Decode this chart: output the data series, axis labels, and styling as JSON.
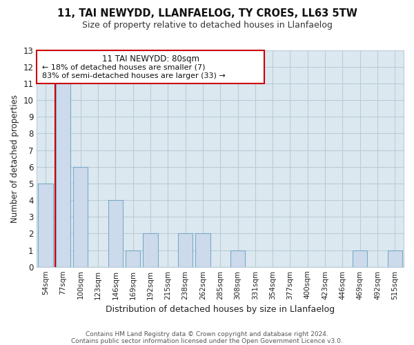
{
  "title": "11, TAI NEWYDD, LLANFAELOG, TY CROES, LL63 5TW",
  "subtitle": "Size of property relative to detached houses in Llanfaelog",
  "xlabel": "Distribution of detached houses by size in Llanfaelog",
  "ylabel": "Number of detached properties",
  "categories": [
    "54sqm",
    "77sqm",
    "100sqm",
    "123sqm",
    "146sqm",
    "169sqm",
    "192sqm",
    "215sqm",
    "238sqm",
    "262sqm",
    "285sqm",
    "308sqm",
    "331sqm",
    "354sqm",
    "377sqm",
    "400sqm",
    "423sqm",
    "446sqm",
    "469sqm",
    "492sqm",
    "515sqm"
  ],
  "values": [
    5,
    11,
    6,
    0,
    4,
    1,
    2,
    0,
    2,
    2,
    0,
    1,
    0,
    0,
    0,
    0,
    0,
    0,
    1,
    0,
    1
  ],
  "bar_fill_color": "#ccdaeb",
  "bar_edge_color": "#7aaac8",
  "vline_color": "#cc0000",
  "ylim": [
    0,
    13
  ],
  "yticks": [
    0,
    1,
    2,
    3,
    4,
    5,
    6,
    7,
    8,
    9,
    10,
    11,
    12,
    13
  ],
  "annotation_title": "11 TAI NEWYDD: 80sqm",
  "annotation_line1": "← 18% of detached houses are smaller (7)",
  "annotation_line2": "83% of semi-detached houses are larger (33) →",
  "ann_box_color": "#cc0000",
  "footer1": "Contains HM Land Registry data © Crown copyright and database right 2024.",
  "footer2": "Contains public sector information licensed under the Open Government Licence v3.0.",
  "background_color": "#ffffff",
  "plot_bg_color": "#dce8f0",
  "grid_color": "#b8ccd8"
}
